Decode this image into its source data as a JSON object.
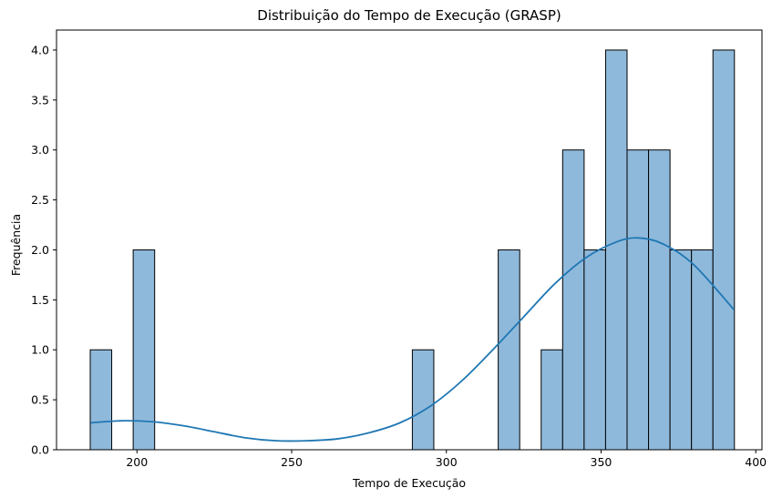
{
  "chart_data": {
    "type": "bar",
    "title": "Distribuição do Tempo de Execução (GRASP)",
    "xlabel": "Tempo de Execução",
    "ylabel": "Frequência",
    "xlim": [
      174,
      402
    ],
    "ylim": [
      0,
      4.2
    ],
    "xticks": [
      200,
      250,
      300,
      350,
      400
    ],
    "yticks": [
      0.0,
      0.5,
      1.0,
      1.5,
      2.0,
      2.5,
      3.0,
      3.5,
      4.0
    ],
    "bar_color": "#8fb9db",
    "edge_color": "#000000",
    "kde_color": "#1f77b4",
    "grid": false,
    "bins": [
      {
        "x0": 184.9,
        "x1": 191.84,
        "count": 1
      },
      {
        "x0": 191.84,
        "x1": 198.78,
        "count": 0
      },
      {
        "x0": 198.78,
        "x1": 205.72,
        "count": 2
      },
      {
        "x0": 205.72,
        "x1": 212.66,
        "count": 0
      },
      {
        "x0": 212.66,
        "x1": 219.6,
        "count": 0
      },
      {
        "x0": 219.6,
        "x1": 226.54,
        "count": 0
      },
      {
        "x0": 226.54,
        "x1": 233.48,
        "count": 0
      },
      {
        "x0": 233.48,
        "x1": 240.42,
        "count": 0
      },
      {
        "x0": 240.42,
        "x1": 247.36,
        "count": 0
      },
      {
        "x0": 247.36,
        "x1": 254.3,
        "count": 0
      },
      {
        "x0": 254.3,
        "x1": 261.24,
        "count": 0
      },
      {
        "x0": 261.24,
        "x1": 268.18,
        "count": 0
      },
      {
        "x0": 268.18,
        "x1": 275.12,
        "count": 0
      },
      {
        "x0": 275.12,
        "x1": 282.06,
        "count": 0
      },
      {
        "x0": 282.06,
        "x1": 289.0,
        "count": 0
      },
      {
        "x0": 289.0,
        "x1": 295.94,
        "count": 1
      },
      {
        "x0": 295.94,
        "x1": 302.88,
        "count": 0
      },
      {
        "x0": 302.88,
        "x1": 309.82,
        "count": 0
      },
      {
        "x0": 309.82,
        "x1": 316.76,
        "count": 0
      },
      {
        "x0": 316.76,
        "x1": 323.7,
        "count": 2
      },
      {
        "x0": 323.7,
        "x1": 330.64,
        "count": 0
      },
      {
        "x0": 330.64,
        "x1": 337.58,
        "count": 1
      },
      {
        "x0": 337.58,
        "x1": 344.52,
        "count": 3
      },
      {
        "x0": 344.52,
        "x1": 351.46,
        "count": 2
      },
      {
        "x0": 351.46,
        "x1": 358.4,
        "count": 4
      },
      {
        "x0": 358.4,
        "x1": 365.34,
        "count": 3
      },
      {
        "x0": 365.34,
        "x1": 372.28,
        "count": 3
      },
      {
        "x0": 372.28,
        "x1": 379.22,
        "count": 2
      },
      {
        "x0": 379.22,
        "x1": 386.16,
        "count": 2
      },
      {
        "x0": 386.16,
        "x1": 393.1,
        "count": 4
      }
    ],
    "kde": {
      "x": [
        185,
        195,
        205,
        215,
        225,
        235,
        245,
        255,
        265,
        275,
        285,
        295,
        305,
        315,
        325,
        335,
        345,
        355,
        362,
        370,
        380,
        393
      ],
      "y": [
        0.27,
        0.29,
        0.28,
        0.24,
        0.18,
        0.12,
        0.09,
        0.09,
        0.11,
        0.17,
        0.27,
        0.44,
        0.69,
        1.0,
        1.33,
        1.66,
        1.92,
        2.08,
        2.12,
        2.06,
        1.85,
        1.4
      ]
    }
  }
}
